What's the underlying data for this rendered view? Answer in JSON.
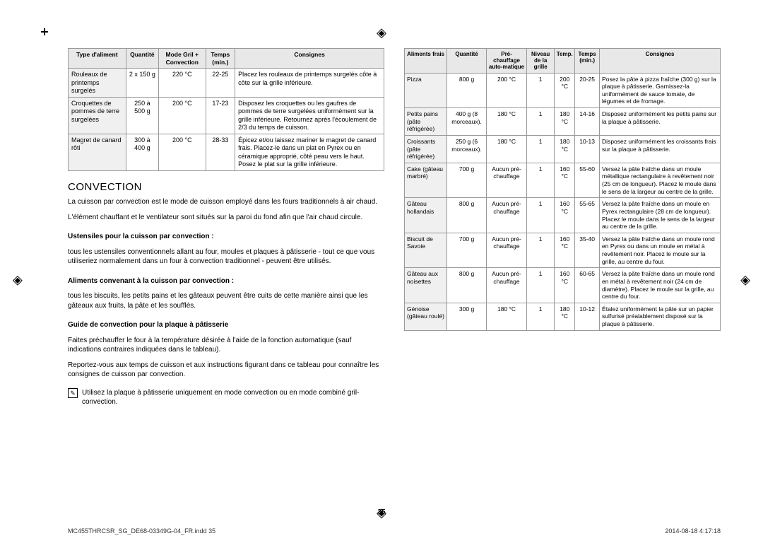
{
  "marks": {
    "glyph": "◈"
  },
  "pagenum": "35",
  "footer": {
    "left": "MC455THRCSR_SG_DE68-03349G-04_FR.indd   35",
    "right": "2014-08-18   4:17:18"
  },
  "left": {
    "table1": {
      "headers": [
        "Type d'aliment",
        "Quantité",
        "Mode Gril + Convection",
        "Temps (min.)",
        "Consignes"
      ],
      "rows": [
        [
          "Rouleaux de printemps surgelés",
          "2 x 150 g",
          "220 °C",
          "22-25",
          "Placez les rouleaux de printemps surgelés côte à côte sur la grille inférieure."
        ],
        [
          "Croquettes de pommes de terre surgelées",
          "250 à 500 g",
          "200 °C",
          "17-23",
          "Disposez les croquettes ou les gaufres de pommes de terre surgelées uniformément sur la grille inférieure. Retournez après l'écoulement de 2/3 du temps de cuisson."
        ],
        [
          "Magret de canard rôti",
          "300 à 400 g",
          "200 °C",
          "28-33",
          "Épicez et/ou laissez mariner le magret de canard frais. Placez-le dans un plat en Pyrex ou en céramique approprié, côté peau vers le haut. Posez le plat sur la grille inférieure."
        ]
      ]
    },
    "h2": "CONVECTION",
    "p1": "La cuisson par convection est le mode de cuisson employé dans les fours traditionnels à air chaud.",
    "p2": "L'élément chauffant et le ventilateur sont situés sur la paroi du fond afin que l'air chaud circule.",
    "s1h": "Ustensiles pour la cuisson par convection :",
    "s1p": "tous les ustensiles conventionnels allant au four, moules et plaques à pâtisserie - tout ce que vous utiliseriez normalement dans un four à convection traditionnel - peuvent être utilisés.",
    "s2h": "Aliments convenant à la cuisson par convection :",
    "s2p": "tous les biscuits, les petits pains et les gâteaux peuvent être cuits de cette manière ainsi que les gâteaux aux fruits, la pâte et les soufflés.",
    "s3h": "Guide de convection pour la plaque à pâtisserie",
    "s3p1": "Faites préchauffer le four à la température désirée à l'aide de la fonction automatique (sauf indications contraires indiquées dans le tableau).",
    "s3p2": "Reportez-vous aux temps de cuisson et aux instructions figurant dans ce tableau pour connaître les consignes de cuisson par convection.",
    "note": "Utilisez la plaque à pâtisserie uniquement en mode convection ou en mode combiné gril-convection."
  },
  "right": {
    "headers": [
      "Aliments frais",
      "Quantité",
      "Pré-chauffage auto-matique",
      "Niveau de la grille",
      "Temp.",
      "Temps (min.)",
      "Consignes"
    ],
    "rows": [
      [
        "Pizza",
        "800 g",
        "200 °C",
        "1",
        "200 °C",
        "20-25",
        "Posez la pâte à pizza fraîche (300 g) sur la plaque à pâtisserie. Garnissez-la uniformément de sauce tomate, de légumes et de fromage."
      ],
      [
        "Petits pains (pâte réfrigérée)",
        "400 g (8 morceaux).",
        "180 °C",
        "1",
        "180 °C",
        "14-16",
        "Disposez uniformément les petits pains sur la plaque à pâtisserie."
      ],
      [
        "Croissants (pâte réfrigérée)",
        "250 g (6 morceaux).",
        "180 °C",
        "1",
        "180 °C",
        "10-13",
        "Disposez uniformément les croissants frais sur la plaque à pâtisserie."
      ],
      [
        "Cake (gâteau marbré)",
        "700 g",
        "Aucun pré-chauffage",
        "1",
        "160 °C",
        "55-60",
        "Versez la pâte fraîche dans un moule métallique rectangulaire à revêtement noir (25 cm de longueur). Placez le moule dans le sens de la largeur au centre de la grille."
      ],
      [
        "Gâteau hollandais",
        "800 g",
        "Aucun pré-chauffage",
        "1",
        "160 °C",
        "55-65",
        "Versez la pâte fraîche dans un moule en Pyrex rectangulaire (28 cm de longueur). Placez le moule dans le sens de la largeur au centre de la grille."
      ],
      [
        "Biscuit de Savoie",
        "700 g",
        "Aucun pré-chauffage",
        "1",
        "160 °C",
        "35-40",
        "Versez la pâte fraîche dans un moule rond en Pyrex ou dans un moule en métal à revêtement noir. Placez le moule sur la grille, au centre du four."
      ],
      [
        "Gâteau aux noisettes",
        "800 g",
        "Aucun pré-chauffage",
        "1",
        "160 °C",
        "60-65",
        "Versez la pâte fraîche dans un moule rond en métal à revêtement noir (24 cm de diamètre). Placez le moule sur la grille, au centre du four."
      ],
      [
        "Génoise (gâteau roulé)",
        "300 g",
        "180 °C",
        "1",
        "180 °C",
        "10-12",
        "Étalez uniformément la pâte sur un papier sulfurisé préalablement disposé sur la plaque à pâtisserie."
      ]
    ]
  }
}
